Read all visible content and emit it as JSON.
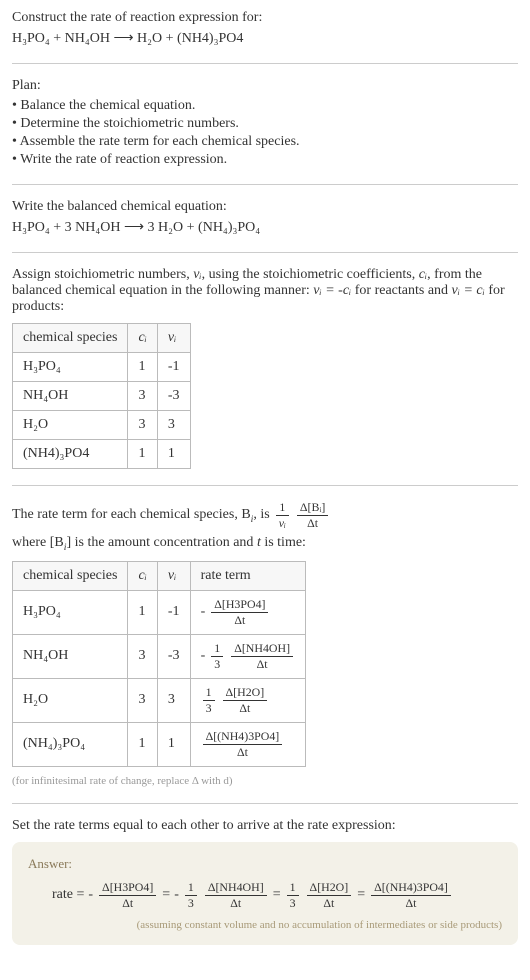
{
  "header": {
    "title": "Construct the rate of reaction expression for:",
    "equation": "H₃PO₄ + NH₄OH ⟶ H₂O + (NH4)₃PO4"
  },
  "plan": {
    "title": "Plan:",
    "items": [
      "Balance the chemical equation.",
      "Determine the stoichiometric numbers.",
      "Assemble the rate term for each chemical species.",
      "Write the rate of reaction expression."
    ]
  },
  "balanced": {
    "title": "Write the balanced chemical equation:",
    "equation": "H₃PO₄ + 3 NH₄OH ⟶ 3 H₂O + (NH₄)₃PO₄"
  },
  "stoich": {
    "intro_part1": "Assign stoichiometric numbers, ",
    "intro_var1": "νᵢ",
    "intro_part2": ", using the stoichiometric coefficients, ",
    "intro_var2": "cᵢ",
    "intro_part3": ", from the balanced chemical equation in the following manner: ",
    "intro_eq1": "νᵢ = -cᵢ",
    "intro_part4": " for reactants and ",
    "intro_eq2": "νᵢ = cᵢ",
    "intro_part5": " for products:",
    "headers": [
      "chemical species",
      "cᵢ",
      "νᵢ"
    ],
    "rows": [
      {
        "species": "H₃PO₄",
        "c": "1",
        "v": "-1"
      },
      {
        "species": "NH₄OH",
        "c": "3",
        "v": "-3"
      },
      {
        "species": "H₂O",
        "c": "3",
        "v": "3"
      },
      {
        "species": "(NH4)₃PO4",
        "c": "1",
        "v": "1"
      }
    ]
  },
  "rateterm": {
    "intro_part1": "The rate term for each chemical species, B",
    "intro_sub": "i",
    "intro_part2": ", is ",
    "frac1_num": "1",
    "frac1_den": "νᵢ",
    "frac2_num": "Δ[Bᵢ]",
    "frac2_den": "Δt",
    "intro_part3": " where [B",
    "intro_part4": "] is the amount concentration and ",
    "intro_var_t": "t",
    "intro_part5": " is time:",
    "headers": [
      "chemical species",
      "cᵢ",
      "νᵢ",
      "rate term"
    ],
    "rows": [
      {
        "species": "H₃PO₄",
        "c": "1",
        "v": "-1",
        "sign": "-",
        "coef_num": "",
        "coef_den": "",
        "num": "Δ[H3PO4]",
        "den": "Δt"
      },
      {
        "species": "NH₄OH",
        "c": "3",
        "v": "-3",
        "sign": "-",
        "coef_num": "1",
        "coef_den": "3",
        "num": "Δ[NH4OH]",
        "den": "Δt"
      },
      {
        "species": "H₂O",
        "c": "3",
        "v": "3",
        "sign": "",
        "coef_num": "1",
        "coef_den": "3",
        "num": "Δ[H2O]",
        "den": "Δt"
      },
      {
        "species": "(NH₄)₃PO₄",
        "c": "1",
        "v": "1",
        "sign": "",
        "coef_num": "",
        "coef_den": "",
        "num": "Δ[(NH4)3PO4]",
        "den": "Δt"
      }
    ],
    "note": "(for infinitesimal rate of change, replace Δ with d)"
  },
  "final": {
    "title": "Set the rate terms equal to each other to arrive at the rate expression:",
    "answer_label": "Answer:",
    "rate_label": "rate =",
    "eq": "=",
    "terms": [
      {
        "sign": "-",
        "coef_num": "",
        "coef_den": "",
        "num": "Δ[H3PO4]",
        "den": "Δt"
      },
      {
        "sign": "-",
        "coef_num": "1",
        "coef_den": "3",
        "num": "Δ[NH4OH]",
        "den": "Δt"
      },
      {
        "sign": "",
        "coef_num": "1",
        "coef_den": "3",
        "num": "Δ[H2O]",
        "den": "Δt"
      },
      {
        "sign": "",
        "coef_num": "",
        "coef_den": "",
        "num": "Δ[(NH4)3PO4]",
        "den": "Δt"
      }
    ],
    "note": "(assuming constant volume and no accumulation of intermediates or side products)"
  }
}
